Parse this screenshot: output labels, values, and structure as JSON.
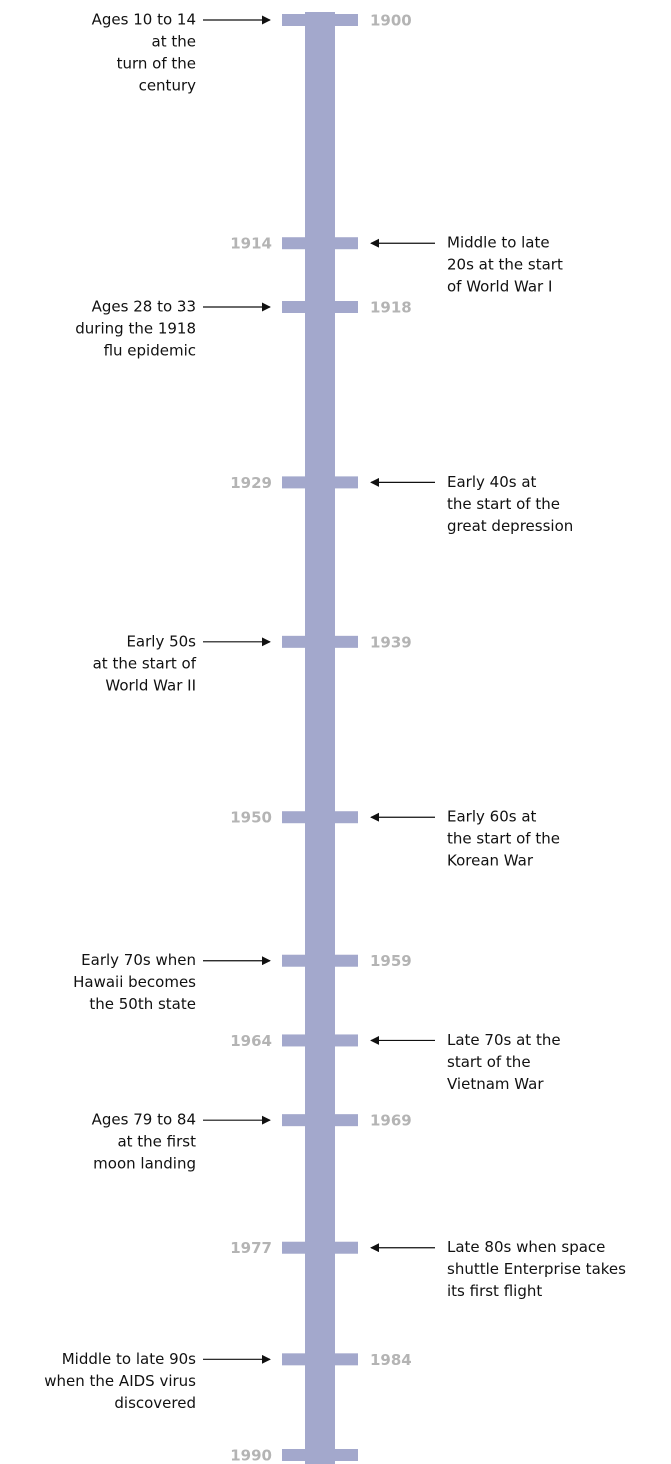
{
  "events": [
    {
      "year": 1900,
      "year_side": "right",
      "lines": [
        "Ages 10 to 14",
        "at the",
        "turn of the",
        "century"
      ]
    },
    {
      "year": 1914,
      "year_side": "left",
      "lines": [
        "Middle to late",
        "20s at the start",
        "of World War I"
      ]
    },
    {
      "year": 1918,
      "year_side": "right",
      "lines": [
        "Ages 28 to 33",
        "during the 1918",
        "flu epidemic"
      ]
    },
    {
      "year": 1929,
      "year_side": "left",
      "lines": [
        "Early 40s at",
        "the start of the",
        "great depression"
      ]
    },
    {
      "year": 1939,
      "year_side": "right",
      "lines": [
        "Early 50s",
        "at the start of",
        "World War II"
      ]
    },
    {
      "year": 1950,
      "year_side": "left",
      "lines": [
        "Early 60s at",
        "the start of the",
        "Korean War"
      ]
    },
    {
      "year": 1959,
      "year_side": "right",
      "lines": [
        "Early 70s when",
        "Hawaii becomes",
        "the 50th state"
      ]
    },
    {
      "year": 1964,
      "year_side": "left",
      "lines": [
        "Late 70s at the",
        "start of the",
        "Vietnam War"
      ]
    },
    {
      "year": 1969,
      "year_side": "right",
      "lines": [
        "Ages 79 to 84",
        "at the first",
        "moon landing"
      ]
    },
    {
      "year": 1977,
      "year_side": "left",
      "lines": [
        "Late 80s when space",
        "shuttle Enterprise takes",
        "its first flight"
      ]
    },
    {
      "year": 1984,
      "year_side": "right",
      "lines": [
        "Middle to late 90s",
        "when the AIDS virus",
        "discovered"
      ]
    },
    {
      "year": 1990,
      "year_side": "left",
      "lines": []
    }
  ]
}
